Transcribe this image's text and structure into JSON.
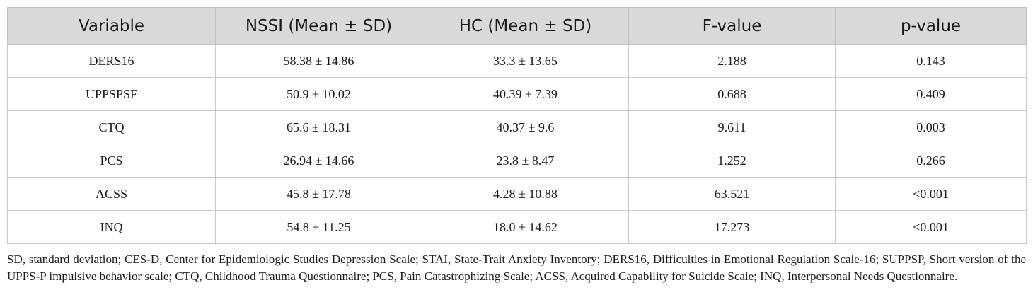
{
  "table": {
    "headers": [
      "Variable",
      "NSSI (Mean ± SD)",
      "HC (Mean ± SD)",
      "F-value",
      "p-value"
    ],
    "rows": [
      [
        "DERS16",
        "58.38 ± 14.86",
        "33.3 ± 13.65",
        "2.188",
        "0.143"
      ],
      [
        "UPPSPSF",
        "50.9 ± 10.02",
        "40.39 ± 7.39",
        "0.688",
        "0.409"
      ],
      [
        "CTQ",
        "65.6 ± 18.31",
        "40.37 ± 9.6",
        "9.611",
        "0.003"
      ],
      [
        "PCS",
        "26.94 ± 14.66",
        "23.8 ± 8.47",
        "1.252",
        "0.266"
      ],
      [
        "ACSS",
        "45.8 ± 17.78",
        "4.28 ± 10.88",
        "63.521",
        "<0.001"
      ],
      [
        "INQ",
        "54.8 ± 11.25",
        "18.0 ± 14.62",
        "17.273",
        "<0.001"
      ]
    ]
  },
  "footnote": "SD, standard deviation; CES-D, Center for Epidemiologic Studies Depression Scale; STAI, State-Trait Anxiety Inventory; DERS16, Difficulties in Emotional Regulation Scale-16; SUPPSP, Short version of the UPPS-P impulsive behavior scale; CTQ, Childhood Trauma Questionnaire; PCS, Pain Catastrophizing Scale; ACSS, Acquired Capability for Suicide Scale; INQ, Interpersonal Needs Questionnaire.",
  "colors": {
    "header_background": "#d9d9d9",
    "border": "#c8c8c8",
    "text": "#1a1a1a"
  }
}
